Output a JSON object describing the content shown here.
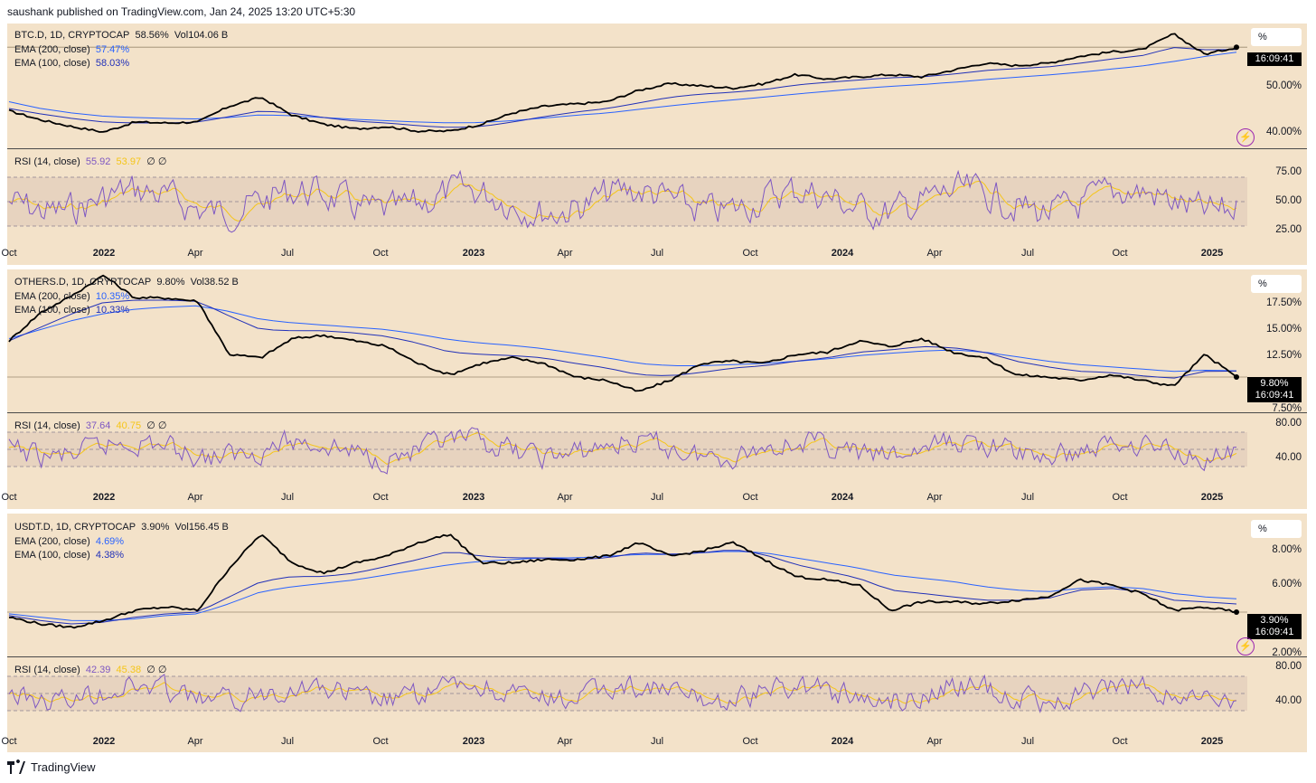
{
  "header": "saushank published on TradingView.com, Jan 24, 2025 13:20 UTC+5:30",
  "footer": {
    "brand": "TradingView",
    "logo_icon": "tradingview-logo-icon"
  },
  "colors": {
    "background": "#f3e2c9",
    "price": "#000000",
    "ema200": "#2962ff",
    "ema100": "#2130b8",
    "rsi": "#7e57c2",
    "rsi_ma": "#f5c518"
  },
  "x_ticks": [
    {
      "label": "Oct",
      "bold": false
    },
    {
      "label": "2022",
      "bold": true
    },
    {
      "label": "Apr",
      "bold": false
    },
    {
      "label": "Jul",
      "bold": false
    },
    {
      "label": "Oct",
      "bold": false
    },
    {
      "label": "2023",
      "bold": true
    },
    {
      "label": "Apr",
      "bold": false
    },
    {
      "label": "Jul",
      "bold": false
    },
    {
      "label": "Oct",
      "bold": false
    },
    {
      "label": "2024",
      "bold": true
    },
    {
      "label": "Apr",
      "bold": false
    },
    {
      "label": "Jul",
      "bold": false
    },
    {
      "label": "Oct",
      "bold": false
    },
    {
      "label": "2025",
      "bold": true
    }
  ],
  "panels": [
    {
      "symbol": "BTC.D, 1D, CRYPTOCAP",
      "value": "58.56%",
      "volume": "Vol104.06 B",
      "ema200_label": "EMA (200, close)",
      "ema200_value": "57.47%",
      "ema100_label": "EMA (100, close)",
      "ema100_value": "58.03%",
      "scale_unit": "%",
      "y_ticks": [
        "50.00%",
        "40.00%"
      ],
      "price_tag": "",
      "countdown": "16:09:41",
      "rsi_label": "RSI (14, close)",
      "rsi_value": "55.92",
      "rsi_ma_value": "53.97",
      "rsi_flags": "∅ ∅",
      "rsi_ticks": [
        "75.00",
        "50.00",
        "25.00"
      ],
      "bolt_icon": true
    },
    {
      "symbol": "OTHERS.D, 1D, CRYPTOCAP",
      "value": "9.80%",
      "volume": "Vol38.52 B",
      "ema200_label": "EMA (200, close)",
      "ema200_value": "10.35%",
      "ema100_label": "EMA (100, close)",
      "ema100_value": "10.33%",
      "scale_unit": "%",
      "y_ticks": [
        "17.50%",
        "15.00%",
        "12.50%",
        "7.50%"
      ],
      "price_tag": "9.80%",
      "countdown": "16:09:41",
      "rsi_label": "RSI (14, close)",
      "rsi_value": "37.64",
      "rsi_ma_value": "40.75",
      "rsi_flags": "∅ ∅",
      "rsi_ticks": [
        "80.00",
        "40.00"
      ],
      "bolt_icon": false
    },
    {
      "symbol": "USDT.D, 1D, CRYPTOCAP",
      "value": "3.90%",
      "volume": "Vol156.45 B",
      "ema200_label": "EMA (200, close)",
      "ema200_value": "4.69%",
      "ema100_label": "EMA (100, close)",
      "ema100_value": "4.38%",
      "scale_unit": "%",
      "y_ticks": [
        "8.00%",
        "6.00%",
        "2.00%"
      ],
      "price_tag": "3.90%",
      "countdown": "16:09:41",
      "rsi_label": "RSI (14, close)",
      "rsi_value": "42.39",
      "rsi_ma_value": "45.38",
      "rsi_flags": "∅ ∅",
      "rsi_ticks": [
        "80.00",
        "40.00"
      ],
      "bolt_icon": true
    }
  ],
  "chart_data": [
    {
      "type": "line",
      "title": "BTC.D, 1D, CRYPTOCAP",
      "x": [
        "2021-10",
        "2021-11",
        "2021-12",
        "2022-01",
        "2022-02",
        "2022-03",
        "2022-04",
        "2022-05",
        "2022-06",
        "2022-07",
        "2022-08",
        "2022-09",
        "2022-10",
        "2022-11",
        "2022-12",
        "2023-01",
        "2023-02",
        "2023-03",
        "2023-04",
        "2023-05",
        "2023-06",
        "2023-07",
        "2023-08",
        "2023-09",
        "2023-10",
        "2023-11",
        "2023-12",
        "2024-01",
        "2024-02",
        "2024-03",
        "2024-04",
        "2024-05",
        "2024-06",
        "2024-07",
        "2024-08",
        "2024-09",
        "2024-10",
        "2024-11",
        "2024-12",
        "2025-01"
      ],
      "ylim": [
        37,
        63
      ],
      "series": [
        {
          "name": "BTC.D",
          "values": [
            44.5,
            42.5,
            41.0,
            39.8,
            42.0,
            41.8,
            42.0,
            45.5,
            47.5,
            43.5,
            41.5,
            40.5,
            41.0,
            40.0,
            40.0,
            41.5,
            44.0,
            45.5,
            46.0,
            46.5,
            49.0,
            50.5,
            50.0,
            49.5,
            50.5,
            52.5,
            51.5,
            52.0,
            52.5,
            52.0,
            53.5,
            55.0,
            54.5,
            55.0,
            56.5,
            57.5,
            58.0,
            61.5,
            57.0,
            58.56
          ]
        },
        {
          "name": "EMA (200, close)",
          "values": [
            46.5,
            45.0,
            44.0,
            43.3,
            43.0,
            42.8,
            42.7,
            43.0,
            43.6,
            43.4,
            43.0,
            42.6,
            42.3,
            42.0,
            41.8,
            41.9,
            42.3,
            42.9,
            43.5,
            44.0,
            44.8,
            45.6,
            46.3,
            46.9,
            47.5,
            48.2,
            48.8,
            49.4,
            49.9,
            50.3,
            50.8,
            51.4,
            51.9,
            52.4,
            53.0,
            53.7,
            54.4,
            55.4,
            56.5,
            57.47
          ]
        },
        {
          "name": "EMA (100, close)",
          "values": [
            45.0,
            43.8,
            42.8,
            42.0,
            41.8,
            41.8,
            42.0,
            43.2,
            44.5,
            44.0,
            43.0,
            42.2,
            41.8,
            41.2,
            40.8,
            41.0,
            42.0,
            43.2,
            44.2,
            45.0,
            46.2,
            47.5,
            48.2,
            48.6,
            49.2,
            50.2,
            50.8,
            51.3,
            51.8,
            52.0,
            52.6,
            53.4,
            53.8,
            54.2,
            55.0,
            55.9,
            56.7,
            58.5,
            58.0,
            58.03
          ]
        }
      ]
    },
    {
      "type": "line",
      "title": "OTHERS.D, 1D, CRYPTOCAP",
      "x": [
        "2021-10",
        "2021-11",
        "2021-12",
        "2022-01",
        "2022-02",
        "2022-03",
        "2022-04",
        "2022-05",
        "2022-06",
        "2022-07",
        "2022-08",
        "2022-09",
        "2022-10",
        "2022-11",
        "2022-12",
        "2023-01",
        "2023-02",
        "2023-03",
        "2023-04",
        "2023-05",
        "2023-06",
        "2023-07",
        "2023-08",
        "2023-09",
        "2023-10",
        "2023-11",
        "2023-12",
        "2024-01",
        "2024-02",
        "2024-03",
        "2024-04",
        "2024-05",
        "2024-06",
        "2024-07",
        "2024-08",
        "2024-09",
        "2024-10",
        "2024-11",
        "2024-12",
        "2025-01"
      ],
      "ylim": [
        7,
        19
      ],
      "series": [
        {
          "name": "OTHERS.D",
          "values": [
            13.0,
            15.5,
            17.0,
            18.8,
            16.8,
            16.8,
            16.5,
            11.8,
            11.5,
            13.2,
            13.5,
            13.0,
            12.5,
            11.0,
            10.0,
            11.0,
            11.5,
            11.0,
            9.8,
            9.5,
            8.5,
            9.5,
            11.0,
            11.2,
            11.0,
            11.8,
            12.0,
            13.0,
            12.5,
            13.2,
            12.0,
            11.5,
            10.0,
            9.8,
            9.5,
            10.0,
            9.5,
            9.0,
            11.8,
            9.8
          ]
        },
        {
          "name": "EMA (200, close)",
          "values": [
            13.2,
            14.0,
            14.8,
            15.4,
            15.8,
            16.0,
            16.1,
            15.6,
            14.9,
            14.6,
            14.4,
            14.2,
            14.0,
            13.6,
            13.1,
            12.8,
            12.6,
            12.3,
            11.9,
            11.5,
            11.0,
            10.8,
            10.8,
            10.9,
            11.0,
            11.2,
            11.4,
            11.7,
            11.9,
            12.1,
            12.2,
            12.0,
            11.6,
            11.2,
            10.9,
            10.7,
            10.5,
            10.3,
            10.4,
            10.35
          ]
        },
        {
          "name": "EMA (100, close)",
          "values": [
            13.0,
            14.2,
            15.4,
            16.4,
            16.6,
            16.6,
            16.5,
            15.2,
            14.0,
            13.9,
            13.9,
            13.7,
            13.4,
            12.8,
            12.0,
            11.8,
            11.7,
            11.5,
            11.0,
            10.6,
            10.0,
            9.9,
            10.2,
            10.6,
            10.8,
            11.2,
            11.5,
            12.0,
            12.2,
            12.5,
            12.4,
            12.0,
            11.2,
            10.7,
            10.3,
            10.2,
            9.9,
            9.7,
            10.3,
            10.33
          ]
        }
      ]
    },
    {
      "type": "line",
      "title": "USDT.D, 1D, CRYPTOCAP",
      "x": [
        "2021-10",
        "2021-11",
        "2021-12",
        "2022-01",
        "2022-02",
        "2022-03",
        "2022-04",
        "2022-05",
        "2022-06",
        "2022-07",
        "2022-08",
        "2022-09",
        "2022-10",
        "2022-11",
        "2022-12",
        "2023-01",
        "2023-02",
        "2023-03",
        "2023-04",
        "2023-05",
        "2023-06",
        "2023-07",
        "2023-08",
        "2023-09",
        "2023-10",
        "2023-11",
        "2023-12",
        "2024-01",
        "2024-02",
        "2024-03",
        "2024-04",
        "2024-05",
        "2024-06",
        "2024-07",
        "2024-08",
        "2024-09",
        "2024-10",
        "2024-11",
        "2024-12",
        "2025-01"
      ],
      "ylim": [
        1.5,
        9.5
      ],
      "series": [
        {
          "name": "USDT.D",
          "values": [
            3.6,
            3.2,
            3.0,
            3.4,
            4.0,
            4.2,
            4.0,
            6.5,
            8.5,
            6.8,
            6.2,
            6.8,
            7.2,
            8.0,
            8.5,
            6.8,
            6.8,
            7.0,
            7.0,
            7.2,
            8.0,
            7.2,
            7.5,
            8.0,
            7.0,
            6.0,
            5.8,
            5.5,
            4.0,
            4.5,
            4.5,
            4.4,
            4.6,
            4.8,
            5.8,
            5.5,
            5.0,
            4.0,
            4.2,
            3.9
          ]
        },
        {
          "name": "EMA (200, close)",
          "values": [
            3.8,
            3.6,
            3.4,
            3.4,
            3.5,
            3.7,
            3.8,
            4.4,
            5.1,
            5.4,
            5.6,
            5.8,
            6.1,
            6.4,
            6.7,
            6.9,
            7.0,
            7.1,
            7.1,
            7.2,
            7.3,
            7.3,
            7.4,
            7.5,
            7.4,
            7.1,
            6.8,
            6.5,
            6.1,
            5.9,
            5.7,
            5.4,
            5.2,
            5.1,
            5.3,
            5.4,
            5.3,
            5.0,
            4.8,
            4.69
          ]
        },
        {
          "name": "EMA (100, close)",
          "values": [
            3.7,
            3.4,
            3.2,
            3.3,
            3.6,
            3.8,
            3.9,
            4.8,
            5.7,
            6.0,
            6.0,
            6.2,
            6.6,
            7.0,
            7.5,
            7.2,
            7.1,
            7.1,
            7.0,
            7.1,
            7.4,
            7.3,
            7.4,
            7.6,
            7.3,
            6.7,
            6.3,
            5.9,
            5.2,
            5.0,
            4.8,
            4.6,
            4.6,
            4.7,
            5.2,
            5.3,
            5.1,
            4.6,
            4.5,
            4.38
          ]
        }
      ]
    }
  ]
}
